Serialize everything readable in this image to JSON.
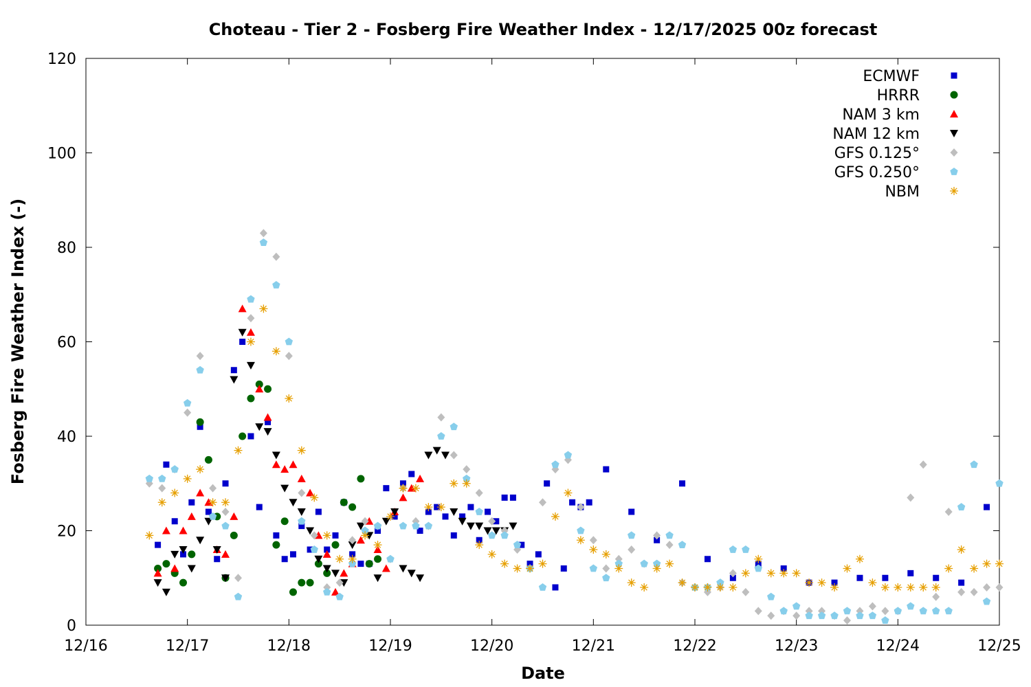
{
  "chart_data": {
    "type": "scatter",
    "title": "Choteau - Tier 2 - Fosberg Fire Weather Index - 12/17/2025 00z forecast",
    "xlabel": "Date",
    "ylabel": "Fosberg Fire Weather Index (-)",
    "xlim": [
      "12/16",
      "12/25"
    ],
    "ylim": [
      0,
      120
    ],
    "x_unit": "days",
    "x_ticks": [
      "12/16",
      "12/17",
      "12/18",
      "12/19",
      "12/20",
      "12/21",
      "12/22",
      "12/23",
      "12/24",
      "12/25"
    ],
    "y_ticks": [
      "0",
      "20",
      "40",
      "60",
      "80",
      "100",
      "120"
    ],
    "grid": false,
    "legend_position": "top-right",
    "series": [
      {
        "name": "ECMWF",
        "color": "#0000cc",
        "marker": "square",
        "x": [
          "12/16 17:00",
          "12/16 19:00",
          "12/16 21:00",
          "12/16 23:00",
          "12/17 01:00",
          "12/17 03:00",
          "12/17 05:00",
          "12/17 07:00",
          "12/17 09:00",
          "12/17 11:00",
          "12/17 13:00",
          "12/17 15:00",
          "12/17 17:00",
          "12/17 19:00",
          "12/17 21:00",
          "12/17 23:00",
          "12/18 01:00",
          "12/18 03:00",
          "12/18 05:00",
          "12/18 07:00",
          "12/18 09:00",
          "12/18 11:00",
          "12/18 13:00",
          "12/18 15:00",
          "12/18 17:00",
          "12/18 19:00",
          "12/18 21:00",
          "12/18 23:00",
          "12/19 01:00",
          "12/19 03:00",
          "12/19 05:00",
          "12/19 07:00",
          "12/19 09:00",
          "12/19 11:00",
          "12/19 13:00",
          "12/19 15:00",
          "12/19 17:00",
          "12/19 19:00",
          "12/19 21:00",
          "12/19 23:00",
          "12/20 01:00",
          "12/20 03:00",
          "12/20 05:00",
          "12/20 07:00",
          "12/20 09:00",
          "12/20 11:00",
          "12/20 13:00",
          "12/20 15:00",
          "12/20 17:00",
          "12/20 19:00",
          "12/20 21:00",
          "12/20 23:00",
          "12/21 03:00",
          "12/21 09:00",
          "12/21 15:00",
          "12/21 21:00",
          "12/22 03:00",
          "12/22 09:00",
          "12/22 15:00",
          "12/22 21:00",
          "12/23 03:00",
          "12/23 09:00",
          "12/23 15:00",
          "12/23 21:00",
          "12/24 03:00",
          "12/24 09:00",
          "12/24 15:00",
          "12/24 21:00"
        ],
        "y": [
          17,
          34,
          22,
          15,
          26,
          42,
          24,
          14,
          30,
          54,
          60,
          40,
          25,
          43,
          19,
          14,
          15,
          21,
          16,
          24,
          16,
          19,
          26,
          15,
          13,
          13,
          20,
          29,
          23,
          30,
          32,
          20,
          24,
          25,
          23,
          19,
          23,
          25,
          18,
          24,
          22,
          27,
          27,
          17,
          13,
          15,
          30,
          8,
          12,
          26,
          25,
          26,
          33,
          24,
          18,
          30,
          14,
          10,
          13,
          12,
          9,
          9,
          10,
          10,
          11,
          10,
          9,
          25
        ]
      },
      {
        "name": "HRRR",
        "color": "#006400",
        "marker": "circle",
        "x": [
          "12/16 17:00",
          "12/16 19:00",
          "12/16 21:00",
          "12/16 23:00",
          "12/17 01:00",
          "12/17 03:00",
          "12/17 05:00",
          "12/17 07:00",
          "12/17 09:00",
          "12/17 11:00",
          "12/17 13:00",
          "12/17 15:00",
          "12/17 17:00",
          "12/17 19:00",
          "12/17 21:00",
          "12/17 23:00",
          "12/18 01:00",
          "12/18 03:00",
          "12/18 05:00",
          "12/18 07:00",
          "12/18 09:00",
          "12/18 11:00",
          "12/18 13:00",
          "12/18 15:00",
          "12/18 17:00",
          "12/18 19:00",
          "12/18 21:00"
        ],
        "y": [
          12,
          13,
          11,
          9,
          15,
          43,
          35,
          23,
          10,
          19,
          40,
          48,
          51,
          50,
          17,
          22,
          7,
          9,
          9,
          13,
          11,
          17,
          26,
          25,
          31,
          13,
          14
        ]
      },
      {
        "name": "NAM 3 km",
        "color": "#ff0000",
        "marker": "triangle-up",
        "x": [
          "12/16 17:00",
          "12/16 19:00",
          "12/16 21:00",
          "12/16 23:00",
          "12/17 01:00",
          "12/17 03:00",
          "12/17 05:00",
          "12/17 07:00",
          "12/17 09:00",
          "12/17 11:00",
          "12/17 13:00",
          "12/17 15:00",
          "12/17 17:00",
          "12/17 19:00",
          "12/17 21:00",
          "12/17 23:00",
          "12/18 01:00",
          "12/18 03:00",
          "12/18 05:00",
          "12/18 07:00",
          "12/18 09:00",
          "12/18 11:00",
          "12/18 13:00",
          "12/18 15:00",
          "12/18 17:00",
          "12/18 19:00",
          "12/18 21:00",
          "12/18 23:00",
          "12/19 01:00",
          "12/19 03:00",
          "12/19 05:00",
          "12/19 07:00"
        ],
        "y": [
          11,
          20,
          12,
          20,
          23,
          28,
          26,
          16,
          15,
          23,
          67,
          62,
          50,
          44,
          34,
          33,
          34,
          31,
          28,
          19,
          15,
          7,
          11,
          13,
          18,
          22,
          16,
          12,
          24,
          27,
          29,
          31
        ]
      },
      {
        "name": "NAM 12 km",
        "color": "#000000",
        "marker": "triangle-down",
        "x": [
          "12/16 17:00",
          "12/16 19:00",
          "12/16 21:00",
          "12/16 23:00",
          "12/17 01:00",
          "12/17 03:00",
          "12/17 05:00",
          "12/17 07:00",
          "12/17 09:00",
          "12/17 11:00",
          "12/17 13:00",
          "12/17 15:00",
          "12/17 17:00",
          "12/17 19:00",
          "12/17 21:00",
          "12/17 23:00",
          "12/18 01:00",
          "12/18 03:00",
          "12/18 05:00",
          "12/18 07:00",
          "12/18 09:00",
          "12/18 11:00",
          "12/18 13:00",
          "12/18 15:00",
          "12/18 17:00",
          "12/18 19:00",
          "12/18 21:00",
          "12/18 23:00",
          "12/19 01:00",
          "12/19 03:00",
          "12/19 05:00",
          "12/19 07:00",
          "12/19 09:00",
          "12/19 11:00",
          "12/19 13:00",
          "12/19 15:00",
          "12/19 17:00",
          "12/19 19:00",
          "12/19 21:00",
          "12/19 23:00",
          "12/20 01:00",
          "12/20 03:00",
          "12/20 05:00"
        ],
        "y": [
          9,
          7,
          15,
          16,
          12,
          18,
          22,
          16,
          10,
          52,
          62,
          55,
          42,
          41,
          36,
          29,
          26,
          24,
          20,
          14,
          12,
          11,
          9,
          17,
          21,
          19,
          10,
          22,
          24,
          12,
          11,
          10,
          36,
          37,
          36,
          24,
          22,
          21,
          21,
          20,
          20,
          20,
          21
        ]
      },
      {
        "name": "GFS 0.125°",
        "color": "#bebebe",
        "marker": "diamond",
        "x": [
          "12/16 15:00",
          "12/16 18:00",
          "12/16 21:00",
          "12/17 00:00",
          "12/17 03:00",
          "12/17 06:00",
          "12/17 09:00",
          "12/17 12:00",
          "12/17 15:00",
          "12/17 18:00",
          "12/17 21:00",
          "12/18 00:00",
          "12/18 03:00",
          "12/18 06:00",
          "12/18 09:00",
          "12/18 12:00",
          "12/18 15:00",
          "12/18 18:00",
          "12/18 21:00",
          "12/19 00:00",
          "12/19 03:00",
          "12/19 06:00",
          "12/19 09:00",
          "12/19 12:00",
          "12/19 15:00",
          "12/19 18:00",
          "12/19 21:00",
          "12/20 00:00",
          "12/20 03:00",
          "12/20 06:00",
          "12/20 09:00",
          "12/20 12:00",
          "12/20 15:00",
          "12/20 18:00",
          "12/20 21:00",
          "12/21 00:00",
          "12/21 03:00",
          "12/21 06:00",
          "12/21 09:00",
          "12/21 12:00",
          "12/21 15:00",
          "12/21 18:00",
          "12/21 21:00",
          "12/22 00:00",
          "12/22 03:00",
          "12/22 06:00",
          "12/22 09:00",
          "12/22 12:00",
          "12/22 15:00",
          "12/22 18:00",
          "12/22 21:00",
          "12/23 00:00",
          "12/23 03:00",
          "12/23 06:00",
          "12/23 09:00",
          "12/23 12:00",
          "12/23 15:00",
          "12/23 18:00",
          "12/23 21:00",
          "12/24 00:00",
          "12/24 03:00",
          "12/24 06:00",
          "12/24 09:00",
          "12/24 12:00",
          "12/24 15:00",
          "12/24 18:00",
          "12/24 21:00",
          "12/25 00:00"
        ],
        "y": [
          30,
          29,
          33,
          45,
          57,
          29,
          24,
          10,
          65,
          83,
          78,
          57,
          28,
          19,
          8,
          9,
          18,
          22,
          21,
          14,
          29,
          22,
          21,
          44,
          36,
          33,
          28,
          22,
          20,
          16,
          12,
          26,
          33,
          35,
          25,
          18,
          12,
          14,
          16,
          13,
          19,
          17,
          9,
          8,
          7,
          8,
          11,
          7,
          3,
          2,
          3,
          2,
          3,
          3,
          2,
          1,
          3,
          4,
          3,
          3,
          27,
          34,
          6,
          24,
          7,
          7,
          8,
          8
        ]
      },
      {
        "name": "GFS 0.250°",
        "color": "#87ceeb",
        "marker": "pentagon",
        "x": [
          "12/16 15:00",
          "12/16 18:00",
          "12/16 21:00",
          "12/17 00:00",
          "12/17 03:00",
          "12/17 06:00",
          "12/17 09:00",
          "12/17 12:00",
          "12/17 15:00",
          "12/17 18:00",
          "12/17 21:00",
          "12/18 00:00",
          "12/18 03:00",
          "12/18 06:00",
          "12/18 09:00",
          "12/18 12:00",
          "12/18 15:00",
          "12/18 18:00",
          "12/18 21:00",
          "12/19 00:00",
          "12/19 03:00",
          "12/19 06:00",
          "12/19 09:00",
          "12/19 12:00",
          "12/19 15:00",
          "12/19 18:00",
          "12/19 21:00",
          "12/20 00:00",
          "12/20 03:00",
          "12/20 06:00",
          "12/20 09:00",
          "12/20 12:00",
          "12/20 15:00",
          "12/20 18:00",
          "12/20 21:00",
          "12/21 00:00",
          "12/21 03:00",
          "12/21 06:00",
          "12/21 09:00",
          "12/21 12:00",
          "12/21 15:00",
          "12/21 18:00",
          "12/21 21:00",
          "12/22 00:00",
          "12/22 03:00",
          "12/22 06:00",
          "12/22 09:00",
          "12/22 12:00",
          "12/22 15:00",
          "12/22 18:00",
          "12/22 21:00",
          "12/23 00:00",
          "12/23 03:00",
          "12/23 06:00",
          "12/23 09:00",
          "12/23 12:00",
          "12/23 15:00",
          "12/23 18:00",
          "12/23 21:00",
          "12/24 00:00",
          "12/24 03:00",
          "12/24 06:00",
          "12/24 09:00",
          "12/24 12:00",
          "12/24 15:00",
          "12/24 18:00",
          "12/24 21:00",
          "12/25 00:00"
        ],
        "y": [
          31,
          31,
          33,
          47,
          54,
          23,
          21,
          6,
          69,
          81,
          72,
          60,
          22,
          16,
          7,
          6,
          13,
          20,
          21,
          14,
          21,
          21,
          21,
          40,
          42,
          31,
          24,
          19,
          19,
          17,
          12,
          8,
          34,
          36,
          20,
          12,
          10,
          13,
          19,
          13,
          13,
          19,
          17,
          8,
          8,
          9,
          16,
          16,
          12,
          6,
          3,
          4,
          2,
          2,
          2,
          3,
          2,
          2,
          1,
          3,
          4,
          3,
          3,
          3,
          25,
          34,
          5,
          30
        ]
      },
      {
        "name": "NBM",
        "color": "#e69f00",
        "marker": "asterisk",
        "x": [
          "12/16 15:00",
          "12/16 18:00",
          "12/16 21:00",
          "12/17 00:00",
          "12/17 03:00",
          "12/17 06:00",
          "12/17 09:00",
          "12/17 12:00",
          "12/17 15:00",
          "12/17 18:00",
          "12/17 21:00",
          "12/18 00:00",
          "12/18 03:00",
          "12/18 06:00",
          "12/18 09:00",
          "12/18 12:00",
          "12/18 15:00",
          "12/18 18:00",
          "12/18 21:00",
          "12/19 00:00",
          "12/19 03:00",
          "12/19 06:00",
          "12/19 09:00",
          "12/19 12:00",
          "12/19 15:00",
          "12/19 18:00",
          "12/19 21:00",
          "12/20 00:00",
          "12/20 03:00",
          "12/20 06:00",
          "12/20 09:00",
          "12/20 12:00",
          "12/20 15:00",
          "12/20 18:00",
          "12/20 21:00",
          "12/21 00:00",
          "12/21 03:00",
          "12/21 06:00",
          "12/21 09:00",
          "12/21 12:00",
          "12/21 15:00",
          "12/21 18:00",
          "12/21 21:00",
          "12/22 00:00",
          "12/22 03:00",
          "12/22 06:00",
          "12/22 09:00",
          "12/22 12:00",
          "12/22 15:00",
          "12/22 18:00",
          "12/22 21:00",
          "12/23 00:00",
          "12/23 03:00",
          "12/23 06:00",
          "12/23 09:00",
          "12/23 12:00",
          "12/23 15:00",
          "12/23 18:00",
          "12/23 21:00",
          "12/24 00:00",
          "12/24 03:00",
          "12/24 06:00",
          "12/24 09:00",
          "12/24 12:00",
          "12/24 15:00",
          "12/24 18:00",
          "12/24 21:00",
          "12/25 00:00"
        ],
        "y": [
          19,
          26,
          28,
          31,
          33,
          26,
          26,
          37,
          60,
          67,
          58,
          48,
          37,
          27,
          19,
          14,
          14,
          19,
          17,
          23,
          29,
          29,
          25,
          25,
          30,
          30,
          17,
          15,
          13,
          12,
          12,
          13,
          23,
          28,
          18,
          16,
          15,
          12,
          9,
          8,
          12,
          13,
          9,
          8,
          8,
          8,
          8,
          11,
          14,
          11,
          11,
          11,
          9,
          9,
          8,
          12,
          14,
          9,
          8,
          8,
          8,
          8,
          8,
          12,
          16,
          12,
          13,
          13
        ]
      }
    ]
  }
}
